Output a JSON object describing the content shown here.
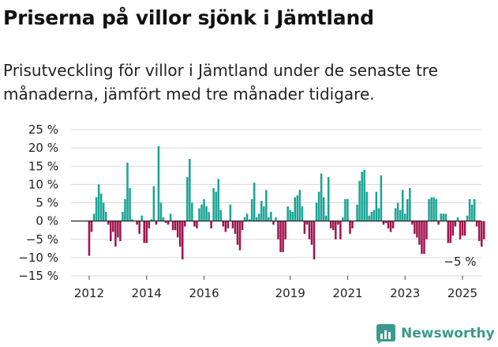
{
  "title": "Priserna på villor sjönk i Jämtland",
  "subtitle": "Prisutveckling för villor i Jämtland under de senaste tre månaderna, jämfört med tre månader tidigare.",
  "colors": {
    "positive": "#17a393",
    "negative": "#a3104d",
    "grid": "#d9d9d9",
    "zero": "#222222"
  },
  "brand": {
    "name": "Newsworthy",
    "icon": "newsworthy-logo-icon",
    "color": "#3a9a8c"
  },
  "chart_data": {
    "type": "bar",
    "title": "Priserna på villor sjönk i Jämtland",
    "subtitle": "Prisutveckling för villor i Jämtland under de senaste tre månaderna, jämfört med tre månader tidigare.",
    "xlabel": "",
    "ylabel": "",
    "ylim": [
      -15,
      25
    ],
    "yticks": [
      25,
      20,
      15,
      10,
      5,
      0,
      -5,
      -10,
      -15
    ],
    "ytick_labels": [
      "25 %",
      "20 %",
      "15 %",
      "10 %",
      "5 %",
      "0 %",
      "−5 %",
      "−10 %",
      "−15 %"
    ],
    "xticks": [
      2012,
      2014,
      2016,
      2019,
      2021,
      2023,
      2025
    ],
    "xtick_labels": [
      "2012",
      "2014",
      "2016",
      "2019",
      "2021",
      "2023",
      "2025"
    ],
    "x_start": 2012.0,
    "x_step": 0.0833333,
    "grid": "horizontal",
    "last_value_label": "−5 %",
    "values": [
      -9.5,
      -3.0,
      2.0,
      6.5,
      10.0,
      7.5,
      5.0,
      2.5,
      -1.0,
      -5.5,
      -3.0,
      -7.0,
      -4.5,
      -5.5,
      2.5,
      6.0,
      16.0,
      9.0,
      0.5,
      0.0,
      -1.0,
      -3.5,
      1.5,
      -6.0,
      -6.0,
      -2.0,
      0.5,
      9.5,
      -1.0,
      20.5,
      5.0,
      1.0,
      -0.5,
      -1.0,
      2.0,
      -2.5,
      -2.5,
      -4.5,
      -7.0,
      -10.5,
      -1.5,
      12.0,
      17.0,
      5.0,
      -1.5,
      -2.0,
      3.5,
      4.5,
      6.0,
      4.0,
      2.5,
      -2.0,
      9.0,
      8.0,
      11.5,
      3.0,
      -1.5,
      -3.0,
      -2.0,
      4.5,
      -2.0,
      -3.5,
      -6.5,
      -8.0,
      -2.5,
      1.0,
      2.0,
      0.5,
      6.0,
      10.5,
      1.0,
      2.0,
      5.5,
      4.0,
      8.5,
      1.0,
      2.5,
      -1.0,
      1.0,
      -5.0,
      -8.5,
      -8.5,
      -5.0,
      4.0,
      3.0,
      2.5,
      6.5,
      7.0,
      8.5,
      4.0,
      -3.5,
      -1.0,
      -5.0,
      -6.5,
      -10.5,
      5.0,
      8.0,
      13.0,
      6.5,
      1.5,
      12.0,
      -2.0,
      -2.5,
      -5.0,
      -1.0,
      -5.0,
      1.0,
      6.0,
      6.0,
      -3.5,
      -2.0,
      0.0,
      4.5,
      11.0,
      13.5,
      14.0,
      8.0,
      1.5,
      2.5,
      3.0,
      8.0,
      3.5,
      12.5,
      -1.0,
      -0.5,
      -2.0,
      -3.0,
      -2.0,
      3.5,
      5.0,
      3.0,
      8.5,
      2.0,
      6.0,
      9.0,
      -1.0,
      -3.5,
      -4.5,
      -6.5,
      -9.0,
      -9.0,
      -5.0,
      6.0,
      6.5,
      6.5,
      6.0,
      -1.0,
      2.0,
      2.0,
      2.0,
      -6.0,
      -6.0,
      -4.0,
      -1.5,
      1.0,
      -5.0,
      -4.0,
      -4.0,
      1.5,
      6.0,
      4.5,
      6.0,
      -1.5,
      -5.5,
      -7.0,
      -5.0
    ]
  }
}
